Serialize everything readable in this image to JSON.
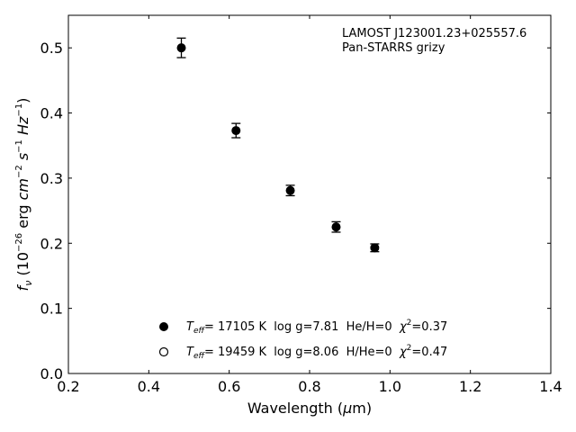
{
  "chart_data": {
    "type": "scatter",
    "annotation": [
      "LAMOST J123001.23+025557.6",
      "Pan-STARRS grizy"
    ],
    "xlabel": {
      "main": "Wavelength (",
      "mu": "μ",
      "unit": "m)"
    },
    "ylabel": {
      "f": "f",
      "nu": "ν",
      "pre": " (10",
      "exp1": "−26",
      "erg": " erg ",
      "cm": "cm",
      "exp2": "−2",
      "s": " s",
      "exp3": "−1",
      "hz": " Hz",
      "exp4": "−1",
      "close": ")"
    },
    "xlim": [
      0.2,
      1.4
    ],
    "ylim": [
      0.0,
      0.55
    ],
    "x_ticks": [
      0.2,
      0.4,
      0.6,
      0.8,
      1.0,
      1.2,
      1.4
    ],
    "x_tick_labels": [
      "0.2",
      "0.4",
      "0.6",
      "0.8",
      "1.0",
      "1.2",
      "1.4"
    ],
    "y_ticks": [
      0.0,
      0.1,
      0.2,
      0.3,
      0.4,
      0.5
    ],
    "y_tick_labels": [
      "0.0",
      "0.1",
      "0.2",
      "0.3",
      "0.4",
      "0.5"
    ],
    "grid": false,
    "legend_position": "bottom-center",
    "marker_color": "#000000",
    "series": [
      {
        "marker": "filled-circle",
        "points": [
          {
            "x": 0.481,
            "y": 0.5,
            "err": 0.015
          },
          {
            "x": 0.617,
            "y": 0.373,
            "err": 0.011
          },
          {
            "x": 0.752,
            "y": 0.281,
            "err": 0.008
          },
          {
            "x": 0.866,
            "y": 0.225,
            "err": 0.008
          },
          {
            "x": 0.962,
            "y": 0.193,
            "err": 0.006
          }
        ]
      }
    ],
    "legend": [
      {
        "marker": "filled-circle",
        "teff": "T",
        "teff_sub": "eff",
        "text1": "= 17105 K  log g=7.81  He/H=0  ",
        "chi": "χ",
        "chi_sup": "2",
        "text2": "=0.37"
      },
      {
        "marker": "open-circle",
        "teff": "T",
        "teff_sub": "eff",
        "text1": "= 19459 K  log g=8.06  H/He=0  ",
        "chi": "χ",
        "chi_sup": "2",
        "text2": "=0.47"
      }
    ]
  }
}
